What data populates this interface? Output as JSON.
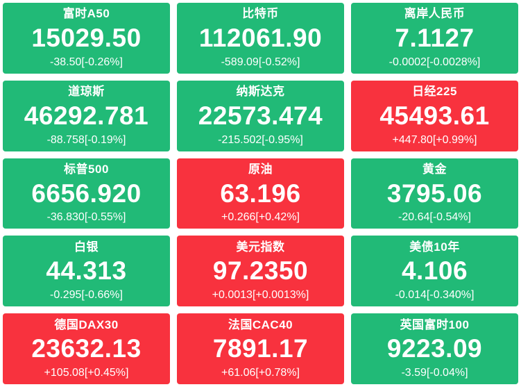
{
  "colors": {
    "up_background": "#f8323e",
    "down_background": "#21ba77",
    "text": "#ffffff",
    "page_background": "#ffffff"
  },
  "tiles": [
    {
      "name": "富时A50",
      "value": "15029.50",
      "change": "-38.50[-0.26%]",
      "direction": "down"
    },
    {
      "name": "比特币",
      "value": "112061.90",
      "change": "-589.09[-0.52%]",
      "direction": "down"
    },
    {
      "name": "离岸人民币",
      "value": "7.1127",
      "change": "-0.0002[-0.0028%]",
      "direction": "down"
    },
    {
      "name": "道琼斯",
      "value": "46292.781",
      "change": "-88.758[-0.19%]",
      "direction": "down"
    },
    {
      "name": "纳斯达克",
      "value": "22573.474",
      "change": "-215.502[-0.95%]",
      "direction": "down"
    },
    {
      "name": "日经225",
      "value": "45493.61",
      "change": "+447.80[+0.99%]",
      "direction": "up"
    },
    {
      "name": "标普500",
      "value": "6656.920",
      "change": "-36.830[-0.55%]",
      "direction": "down"
    },
    {
      "name": "原油",
      "value": "63.196",
      "change": "+0.266[+0.42%]",
      "direction": "up"
    },
    {
      "name": "黄金",
      "value": "3795.06",
      "change": "-20.64[-0.54%]",
      "direction": "down"
    },
    {
      "name": "白银",
      "value": "44.313",
      "change": "-0.295[-0.66%]",
      "direction": "down"
    },
    {
      "name": "美元指数",
      "value": "97.2350",
      "change": "+0.0013[+0.0013%]",
      "direction": "up"
    },
    {
      "name": "美债10年",
      "value": "4.106",
      "change": "-0.014[-0.340%]",
      "direction": "down"
    },
    {
      "name": "德国DAX30",
      "value": "23632.13",
      "change": "+105.08[+0.45%]",
      "direction": "up"
    },
    {
      "name": "法国CAC40",
      "value": "7891.17",
      "change": "+61.06[+0.78%]",
      "direction": "up"
    },
    {
      "name": "英国富时100",
      "value": "9223.09",
      "change": "-3.59[-0.04%]",
      "direction": "down"
    }
  ]
}
